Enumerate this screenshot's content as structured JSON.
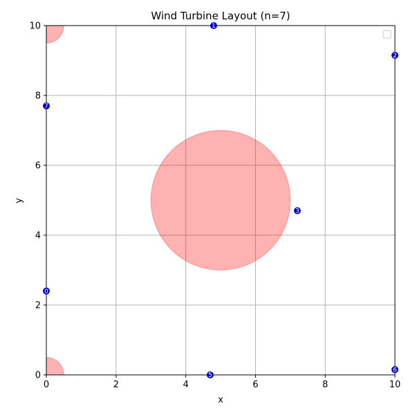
{
  "chart_data": {
    "type": "scatter",
    "title": "Wind Turbine Layout (n=7)",
    "xlabel": "x",
    "ylabel": "y",
    "xlim": [
      0,
      10
    ],
    "ylim": [
      0,
      10
    ],
    "xticks": [
      0,
      2,
      4,
      6,
      8,
      10
    ],
    "yticks": [
      0,
      2,
      4,
      6,
      8,
      10
    ],
    "grid": true,
    "legend": {
      "location": "top-right",
      "entries": []
    },
    "colors": {
      "turbine": "#0000cc",
      "exclusion_zone": "#ff0000",
      "grid": "#b0b0b0"
    },
    "exclusion_zones": [
      {
        "center": [
          5,
          5
        ],
        "radius": 2
      },
      {
        "center": [
          0,
          10
        ],
        "radius": 0.5
      },
      {
        "center": [
          0,
          0
        ],
        "radius": 0.5
      }
    ],
    "turbines": [
      {
        "label": "0",
        "x": 0.0,
        "y": 2.4
      },
      {
        "label": "1",
        "x": 4.8,
        "y": 10.0
      },
      {
        "label": "2",
        "x": 10.0,
        "y": 9.15
      },
      {
        "label": "3",
        "x": 7.2,
        "y": 4.7
      },
      {
        "label": "5",
        "x": 4.7,
        "y": 0.0
      },
      {
        "label": "6",
        "x": 10.0,
        "y": 0.15
      },
      {
        "label": "7",
        "x": 0.0,
        "y": 7.7
      }
    ]
  }
}
